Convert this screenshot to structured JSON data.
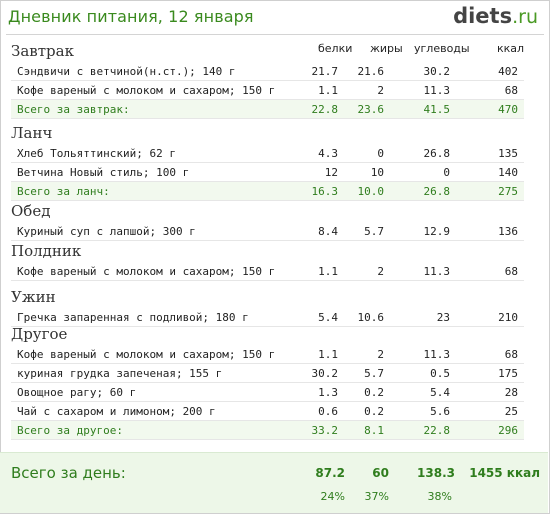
{
  "header": {
    "title": "Дневник питания, 12 января",
    "logo_main": "diets",
    "logo_tld": ".ru"
  },
  "columns": [
    "белки",
    "жиры",
    "углеводы",
    "ккал"
  ],
  "sections": [
    {
      "title": "Завтрак",
      "items": [
        {
          "name": "Сэндвичи с ветчиной(н.ст.); 140 г",
          "v": [
            "21.7",
            "21.6",
            "30.2",
            "402"
          ]
        },
        {
          "name": "Кофе вареный с молоком и сахаром; 150 г",
          "v": [
            "1.1",
            "2",
            "11.3",
            "68"
          ]
        }
      ],
      "total": {
        "name": "Всего за завтрак:",
        "v": [
          "22.8",
          "23.6",
          "41.5",
          "470"
        ]
      }
    },
    {
      "title": "Ланч",
      "items": [
        {
          "name": "Хлеб Тольяттинский; 62 г",
          "v": [
            "4.3",
            "0",
            "26.8",
            "135"
          ]
        },
        {
          "name": "Ветчина Новый стиль; 100 г",
          "v": [
            "12",
            "10",
            "0",
            "140"
          ]
        }
      ],
      "total": {
        "name": "Всего за ланч:",
        "v": [
          "16.3",
          "10.0",
          "26.8",
          "275"
        ]
      }
    },
    {
      "title": "Обед",
      "items": [
        {
          "name": "Куриный суп с лапшой; 300 г",
          "v": [
            "8.4",
            "5.7",
            "12.9",
            "136"
          ]
        }
      ]
    },
    {
      "title": "Полдник",
      "items": [
        {
          "name": "Кофе вареный с молоком и сахаром; 150 г",
          "v": [
            "1.1",
            "2",
            "11.3",
            "68"
          ]
        }
      ]
    },
    {
      "title": "Ужин",
      "items": [
        {
          "name": "Гречка запаренная с подливой; 180 г",
          "v": [
            "5.4",
            "10.6",
            "23",
            "210"
          ]
        }
      ]
    },
    {
      "title": "Другое",
      "items": [
        {
          "name": "Кофе вареный с молоком и сахаром; 150 г",
          "v": [
            "1.1",
            "2",
            "11.3",
            "68"
          ]
        },
        {
          "name": "куриная грудка запеченая; 155 г",
          "v": [
            "30.2",
            "5.7",
            "0.5",
            "175"
          ]
        },
        {
          "name": "Овощное рагу; 60 г",
          "v": [
            "1.3",
            "0.2",
            "5.4",
            "28"
          ]
        },
        {
          "name": "Чай с сахаром и лимоном; 200 г",
          "v": [
            "0.6",
            "0.2",
            "5.6",
            "25"
          ]
        }
      ],
      "total": {
        "name": "Всего за другое:",
        "v": [
          "33.2",
          "8.1",
          "22.8",
          "296"
        ]
      }
    }
  ],
  "summary": {
    "label": "Всего за день:",
    "values": [
      "87.2",
      "60",
      "138.3",
      "1455 ккал"
    ],
    "percents": [
      "24%",
      "37%",
      "38%"
    ]
  },
  "colors": {
    "green": "#2f7d1d",
    "title_green": "#3a8a1e",
    "total_bg": "#f2f9ee",
    "summary_bg": "#edf7e8"
  }
}
